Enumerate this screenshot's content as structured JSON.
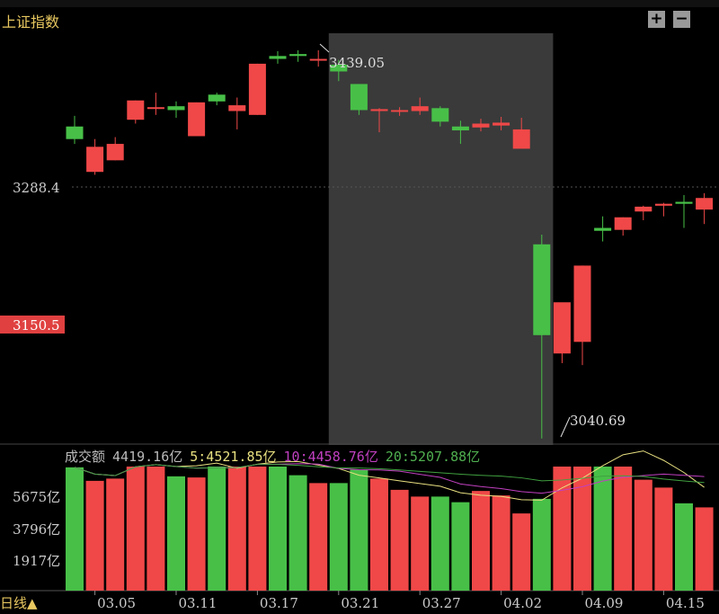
{
  "header": {
    "title": "上证指数",
    "zoom_in_icon": "plus-icon",
    "zoom_out_icon": "minus-icon"
  },
  "period": {
    "label": "日线▲"
  },
  "price_axis": {
    "labels": [
      "3288.4",
      "3150.5"
    ]
  },
  "annotations": {
    "high": "3439.05",
    "low": "3040.69"
  },
  "volume_legend": {
    "name": "成交额",
    "value": "4419.16亿",
    "ma5": "5:4521.85亿",
    "ma10": "10:4458.76亿",
    "ma20": "20:5207.88亿"
  },
  "volume_axis": {
    "labels": [
      "5675亿",
      "3796亿",
      "1917亿"
    ]
  },
  "colors": {
    "up": "#f04848",
    "down": "#48c048",
    "ma5": "#e8e080",
    "ma10": "#c040c0",
    "ma20": "#40a040",
    "highlight": "#3a3a3a"
  },
  "chart_data": {
    "type": "candlestick",
    "title": "上证指数",
    "x_tick_labels": [
      "03.05",
      "03.11",
      "03.17",
      "03.21",
      "03.27",
      "04.02",
      "04.09",
      "04.15"
    ],
    "x_tick_indices": [
      1,
      5,
      9,
      13,
      17,
      21,
      25,
      29
    ],
    "highlight_range": [
      13,
      24
    ],
    "ylim": [
      3030,
      3450
    ],
    "candles": [
      {
        "o": 3363,
        "h": 3374,
        "l": 3345,
        "c": 3350
      },
      {
        "o": 3316,
        "h": 3350,
        "l": 3313,
        "c": 3342
      },
      {
        "o": 3328,
        "h": 3352,
        "l": 3328,
        "c": 3345
      },
      {
        "o": 3370,
        "h": 3390,
        "l": 3366,
        "c": 3390
      },
      {
        "o": 3383,
        "h": 3398,
        "l": 3375,
        "c": 3383
      },
      {
        "o": 3384,
        "h": 3389,
        "l": 3372,
        "c": 3380
      },
      {
        "o": 3353,
        "h": 3388,
        "l": 3353,
        "c": 3388
      },
      {
        "o": 3396,
        "h": 3398,
        "l": 3385,
        "c": 3389
      },
      {
        "o": 3379,
        "h": 3393,
        "l": 3360,
        "c": 3385
      },
      {
        "o": 3375,
        "h": 3428,
        "l": 3375,
        "c": 3428
      },
      {
        "o": 3436,
        "h": 3441,
        "l": 3428,
        "c": 3433
      },
      {
        "o": 3438,
        "h": 3442,
        "l": 3430,
        "c": 3436
      },
      {
        "o": 3433,
        "h": 3442,
        "l": 3425,
        "c": 3433
      },
      {
        "o": 3427,
        "h": 3432,
        "l": 3410,
        "c": 3420
      },
      {
        "o": 3407,
        "h": 3407,
        "l": 3375,
        "c": 3380
      },
      {
        "o": 3379,
        "h": 3382,
        "l": 3357,
        "c": 3381
      },
      {
        "o": 3380,
        "h": 3383,
        "l": 3374,
        "c": 3380
      },
      {
        "o": 3379,
        "h": 3393,
        "l": 3375,
        "c": 3384
      },
      {
        "o": 3382,
        "h": 3384,
        "l": 3363,
        "c": 3368
      },
      {
        "o": 3363,
        "h": 3369,
        "l": 3345,
        "c": 3359
      },
      {
        "o": 3362,
        "h": 3371,
        "l": 3358,
        "c": 3366
      },
      {
        "o": 3364,
        "h": 3373,
        "l": 3359,
        "c": 3367
      },
      {
        "o": 3340,
        "h": 3372,
        "l": 3340,
        "c": 3360
      },
      {
        "o": 3241,
        "h": 3251,
        "l": 3040,
        "c": 3147
      },
      {
        "o": 3128,
        "h": 3180,
        "l": 3118,
        "c": 3181
      },
      {
        "o": 3140,
        "h": 3219,
        "l": 3116,
        "c": 3219
      },
      {
        "o": 3258,
        "h": 3270,
        "l": 3244,
        "c": 3255
      },
      {
        "o": 3256,
        "h": 3269,
        "l": 3250,
        "c": 3269
      },
      {
        "o": 3275,
        "h": 3281,
        "l": 3266,
        "c": 3280
      },
      {
        "o": 3281,
        "h": 3284,
        "l": 3270,
        "c": 3283
      },
      {
        "o": 3285,
        "h": 3292,
        "l": 3258,
        "c": 3283
      },
      {
        "o": 3277,
        "h": 3294,
        "l": 3262,
        "c": 3289
      }
    ],
    "volume": {
      "ylabel": "成交额",
      "unit": "亿",
      "values": [
        6200,
        5600,
        5700,
        7400,
        6700,
        5800,
        5750,
        6300,
        6250,
        7600,
        6300,
        5850,
        5500,
        5500,
        6100,
        5700,
        5200,
        4900,
        4900,
        4650,
        5150,
        4950,
        4150,
        4800,
        7400,
        7300,
        7700,
        6600,
        5650,
        5300,
        4600,
        4419.16
      ]
    }
  }
}
